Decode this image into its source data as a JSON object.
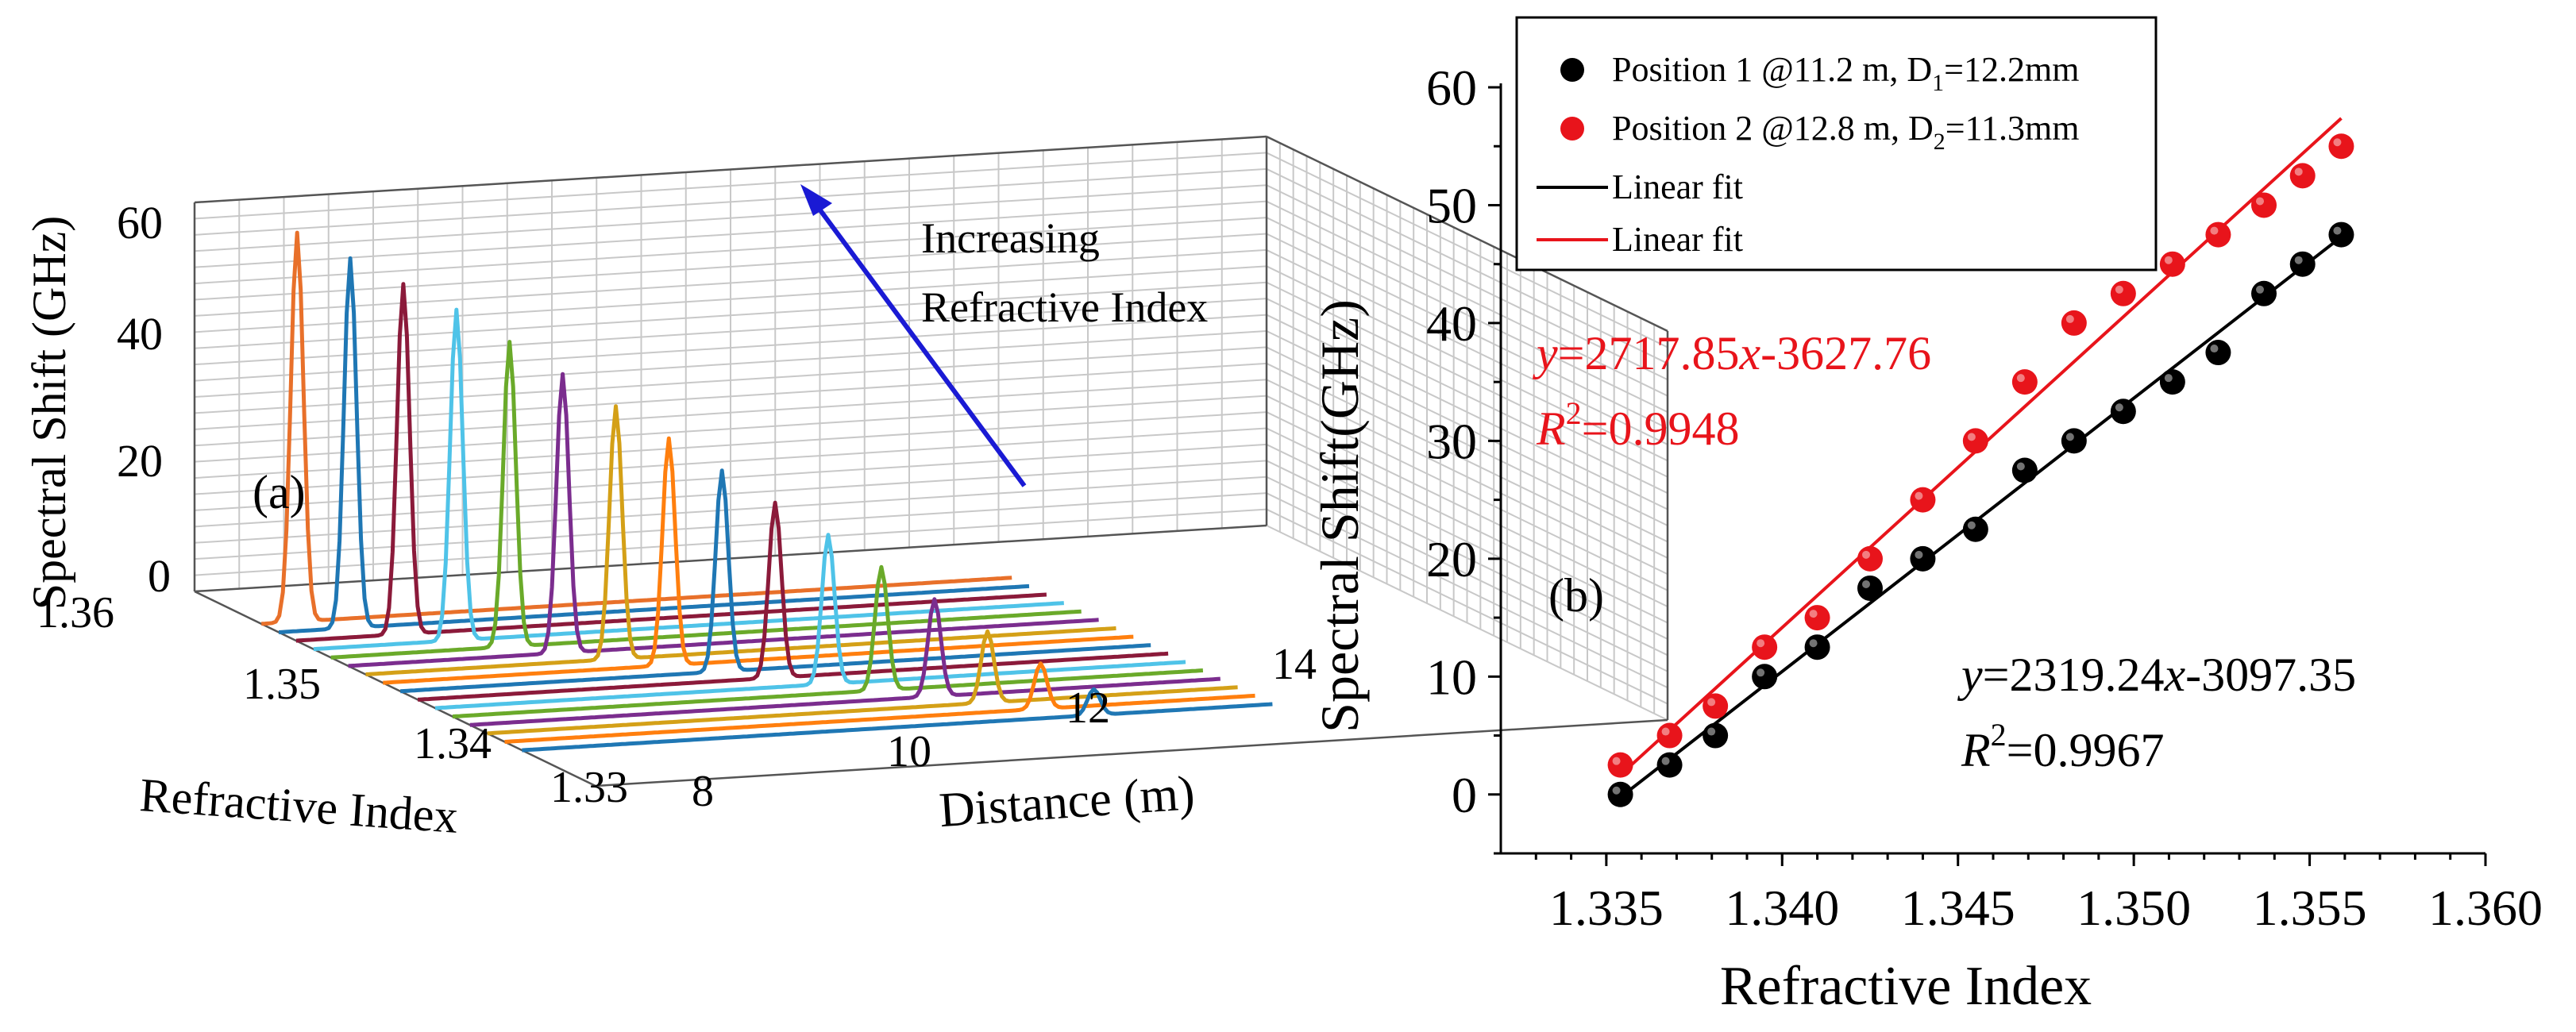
{
  "chart_data": [
    {
      "type": "line",
      "panel_label": "(a)",
      "title": "",
      "zlabel": "Spectral Shift (GHz)",
      "xlabel": "Distance (m)",
      "ylabel": "Refractive Index",
      "z_ticks": [
        "0",
        "20",
        "40",
        "60"
      ],
      "x_ticks": [
        "8",
        "10",
        "12",
        "14"
      ],
      "y_ticks": [
        "1.33",
        "1.34",
        "1.35",
        "1.36"
      ],
      "zlim": [
        0,
        60
      ],
      "xlim": [
        8,
        14
      ],
      "ylim": [
        1.33,
        1.36
      ],
      "annotation": {
        "line1": "Increasing",
        "line2": "Refractive Index",
        "arrow_color": "#1a1ad4"
      },
      "series_colors": [
        "#1f77b4",
        "#ff7f0e",
        "#d4a017",
        "#7b2d8e",
        "#6aaa2a",
        "#4fc3e8",
        "#8b1a3a",
        "#1f77b4",
        "#ff7f0e",
        "#d4a017",
        "#7b2d8e",
        "#6aaa2a",
        "#4fc3e8",
        "#8b1a3a",
        "#1f77b4",
        "#e8702a"
      ],
      "series": [
        {
          "refractive_index": 1.3355,
          "peak_distance_m": 11.2,
          "peak_shift_ghz": 4
        },
        {
          "refractive_index": 1.3368,
          "peak_distance_m": 11.0,
          "peak_shift_ghz": 7
        },
        {
          "refractive_index": 1.3381,
          "peak_distance_m": 10.8,
          "peak_shift_ghz": 11
        },
        {
          "refractive_index": 1.3394,
          "peak_distance_m": 10.6,
          "peak_shift_ghz": 15
        },
        {
          "refractive_index": 1.3407,
          "peak_distance_m": 10.4,
          "peak_shift_ghz": 19
        },
        {
          "refractive_index": 1.342,
          "peak_distance_m": 10.2,
          "peak_shift_ghz": 23
        },
        {
          "refractive_index": 1.3433,
          "peak_distance_m": 10.0,
          "peak_shift_ghz": 27
        },
        {
          "refractive_index": 1.3446,
          "peak_distance_m": 9.8,
          "peak_shift_ghz": 31
        },
        {
          "refractive_index": 1.3459,
          "peak_distance_m": 9.6,
          "peak_shift_ghz": 35
        },
        {
          "refractive_index": 1.3472,
          "peak_distance_m": 9.4,
          "peak_shift_ghz": 39
        },
        {
          "refractive_index": 1.3485,
          "peak_distance_m": 9.2,
          "peak_shift_ghz": 43
        },
        {
          "refractive_index": 1.3498,
          "peak_distance_m": 9.0,
          "peak_shift_ghz": 47
        },
        {
          "refractive_index": 1.3511,
          "peak_distance_m": 8.8,
          "peak_shift_ghz": 51
        },
        {
          "refractive_index": 1.3524,
          "peak_distance_m": 8.6,
          "peak_shift_ghz": 54
        },
        {
          "refractive_index": 1.3537,
          "peak_distance_m": 8.4,
          "peak_shift_ghz": 57
        },
        {
          "refractive_index": 1.355,
          "peak_distance_m": 8.2,
          "peak_shift_ghz": 60
        }
      ]
    },
    {
      "type": "scatter",
      "panel_label": "(b)",
      "title": "",
      "xlabel": "Refractive Index",
      "ylabel": "Spectral Shift(GHz)",
      "xlim": [
        1.332,
        1.36
      ],
      "ylim": [
        -5,
        60
      ],
      "x_ticks": [
        "1.335",
        "1.340",
        "1.345",
        "1.350",
        "1.355",
        "1.360"
      ],
      "y_ticks": [
        "0",
        "10",
        "20",
        "30",
        "40",
        "50",
        "60"
      ],
      "x": [
        1.3354,
        1.3368,
        1.3381,
        1.3395,
        1.341,
        1.3425,
        1.344,
        1.3455,
        1.3469,
        1.3483,
        1.3497,
        1.3511,
        1.3524,
        1.3537,
        1.3548,
        1.3559
      ],
      "series": [
        {
          "name_main": "Position 1 @11.2 m, D",
          "name_sub": "1",
          "name_tail": "=12.2mm",
          "color": "#000000",
          "values": [
            0,
            2.5,
            5,
            10,
            12.5,
            17.5,
            20,
            22.5,
            27.5,
            30,
            32.5,
            35,
            37.5,
            42.5,
            45,
            47.5
          ],
          "fit": {
            "slope": 2319.24,
            "intercept": -3097.35,
            "eq_y": "y",
            "eq_rest": "=2319.24",
            "eq_x": "x",
            "eq_tail": "-3097.35",
            "r_label": "R",
            "r_exp": "2",
            "r_value": "=0.9967"
          }
        },
        {
          "name_main": "Position 2 @12.8 m, D",
          "name_sub": "2",
          "name_tail": "=11.3mm",
          "color": "#e8141b",
          "values": [
            2.5,
            5,
            7.5,
            12.5,
            15,
            20,
            25,
            30,
            35,
            40,
            42.5,
            45,
            47.5,
            50,
            52.5,
            55
          ],
          "fit": {
            "slope": 2717.85,
            "intercept": -3627.76,
            "eq_y": "y",
            "eq_rest": "=2717.85",
            "eq_x": "x",
            "eq_tail": "-3627.76",
            "r_label": "R",
            "r_exp": "2",
            "r_value": "=0.9948"
          }
        }
      ],
      "legend": {
        "placement": "top-left",
        "fit_black": "Linear fit",
        "fit_red": "Linear fit"
      }
    }
  ]
}
